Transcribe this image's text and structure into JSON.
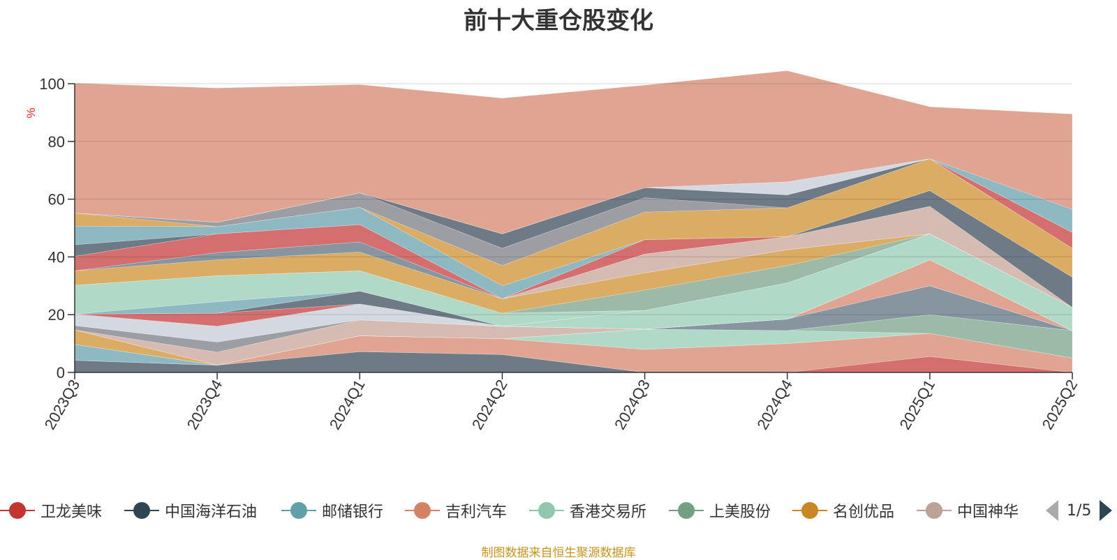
{
  "chart_data": {
    "type": "area",
    "title": "前十大重仓股变化",
    "ylabel": "%",
    "ylim": [
      0,
      100
    ],
    "yticks": [
      "0",
      "20",
      "40",
      "60",
      "80",
      "100"
    ],
    "categories": [
      "2023Q3",
      "2023Q4",
      "2024Q1",
      "2024Q2",
      "2024Q3",
      "2024Q4",
      "2025Q1",
      "2025Q2"
    ],
    "legend_position": "bottom",
    "series": [
      {
        "name": "",
        "color": "#6e7b86",
        "values": [
          4.2,
          2.5,
          7.2,
          6.2,
          0,
          0,
          0,
          0
        ]
      },
      {
        "name": "",
        "color": "#d56f6f",
        "values": [
          0,
          0,
          0,
          0,
          0,
          0,
          5.5,
          0
        ]
      },
      {
        "name": "",
        "color": "#e0a592",
        "values": [
          0,
          0,
          5.5,
          5.5,
          8.0,
          10.0,
          8.0,
          5.0
        ]
      },
      {
        "name": "",
        "color": "#8eb8c2",
        "values": [
          5.5,
          0,
          0,
          0,
          0,
          0,
          0,
          0
        ]
      },
      {
        "name": "",
        "color": "#b0d9c7",
        "values": [
          0,
          0,
          0,
          0,
          7.0,
          4.5,
          0,
          0
        ]
      },
      {
        "name": "",
        "color": "#9bbaa8",
        "values": [
          0,
          0,
          0,
          0,
          0,
          0,
          6.5,
          9.5
        ]
      },
      {
        "name": "",
        "color": "#dbac64",
        "values": [
          5.0,
          0,
          0,
          0,
          0,
          0,
          0,
          0
        ]
      },
      {
        "name": "",
        "color": "#8795a1",
        "values": [
          0,
          0,
          0,
          0,
          0,
          4.0,
          10.0,
          0
        ]
      },
      {
        "name": "",
        "color": "#d6bbb2",
        "values": [
          0,
          4.5,
          5.5,
          4.3,
          0,
          0,
          0,
          0
        ]
      },
      {
        "name": "",
        "color": "#e0a592",
        "values": [
          0,
          0,
          0,
          0,
          0,
          0,
          9.0,
          0
        ]
      },
      {
        "name": "",
        "color": "#9c9ea4",
        "values": [
          1.5,
          3.5,
          0,
          0,
          0,
          0,
          0,
          0
        ]
      },
      {
        "name": "",
        "color": "#d4d9e1",
        "values": [
          4.0,
          5.5,
          5.5,
          0,
          0,
          0,
          0,
          0
        ]
      },
      {
        "name": "",
        "color": "#d56f6f",
        "values": [
          0,
          4.5,
          0,
          0,
          0,
          0,
          0,
          0
        ]
      },
      {
        "name": "",
        "color": "#6e7b86",
        "values": [
          0,
          0,
          4.5,
          0,
          0,
          0,
          0,
          0
        ]
      },
      {
        "name": "",
        "color": "#b0d9c7",
        "values": [
          0,
          0,
          0,
          0,
          6.5,
          12.5,
          9.0,
          8.0
        ]
      },
      {
        "name": "",
        "color": "#8eb8c2",
        "values": [
          0,
          4.0,
          0,
          0,
          0,
          0,
          0,
          0
        ]
      },
      {
        "name": "",
        "color": "#b0d9c7",
        "values": [
          10.0,
          9.0,
          7.0,
          4.5,
          0,
          0,
          0,
          0
        ]
      },
      {
        "name": "",
        "color": "#9bbaa8",
        "values": [
          0,
          0,
          0,
          0,
          7.0,
          6.0,
          0,
          0
        ]
      },
      {
        "name": "",
        "color": "#dbac64",
        "values": [
          5.0,
          5.5,
          6.5,
          5.0,
          6.0,
          5.5,
          0,
          0
        ]
      },
      {
        "name": "",
        "color": "#8795a1",
        "values": [
          0,
          2.5,
          3.5,
          0,
          0,
          0,
          0,
          0
        ]
      },
      {
        "name": "",
        "color": "#d6bbb2",
        "values": [
          0,
          0,
          0,
          0,
          6.5,
          4.5,
          9.5,
          0
        ]
      },
      {
        "name": "",
        "color": "#d56f6f",
        "values": [
          5.0,
          6.5,
          6.0,
          0,
          5.0,
          0,
          0,
          0
        ]
      },
      {
        "name": "",
        "color": "#6e7b86",
        "values": [
          4.0,
          0,
          0,
          0,
          0,
          0,
          5.5,
          10.5
        ]
      },
      {
        "name": "",
        "color": "#8eb8c2",
        "values": [
          6.5,
          2.5,
          6.0,
          4.5,
          0,
          0,
          0,
          0
        ]
      },
      {
        "name": "",
        "color": "#dbac64",
        "values": [
          4.5,
          0,
          0,
          7.0,
          9.5,
          10.0,
          11.0,
          10.0
        ]
      },
      {
        "name": "",
        "color": "#9c9ea4",
        "values": [
          0,
          1.5,
          5.0,
          6.0,
          5.0,
          0,
          0,
          0
        ]
      },
      {
        "name": "",
        "color": "#6e7b86",
        "values": [
          0,
          0,
          0,
          5.0,
          3.5,
          4.5,
          0,
          0
        ]
      },
      {
        "name": "",
        "color": "#d56f6f",
        "values": [
          0,
          0,
          0,
          0,
          0,
          0,
          0,
          5.5
        ]
      },
      {
        "name": "",
        "color": "#d4d9e1",
        "values": [
          0,
          0,
          0,
          0,
          0,
          4.5,
          0,
          0
        ]
      },
      {
        "name": "",
        "color": "#8eb8c2",
        "values": [
          0,
          0,
          0,
          0,
          0,
          0,
          0,
          8.0
        ]
      },
      {
        "name": "",
        "color": "#e0a592",
        "values": [
          45.0,
          46.5,
          37.5,
          47.0,
          35.5,
          38.5,
          18.0,
          33.0
        ]
      }
    ],
    "legend": {
      "items": [
        {
          "label": "卫龙美味",
          "color": "#c23531"
        },
        {
          "label": "中国海洋石油",
          "color": "#2f4554"
        },
        {
          "label": "邮储银行",
          "color": "#61a0a8"
        },
        {
          "label": "吉利汽车",
          "color": "#d48265"
        },
        {
          "label": "香港交易所",
          "color": "#91c7ae"
        },
        {
          "label": "上美股份",
          "color": "#749f83"
        },
        {
          "label": "名创优品",
          "color": "#ca8622"
        },
        {
          "label": "中国神华",
          "color": "#bda29a"
        }
      ],
      "page": "1/5"
    }
  },
  "source_note": "制图数据来自恒生聚源数据库"
}
